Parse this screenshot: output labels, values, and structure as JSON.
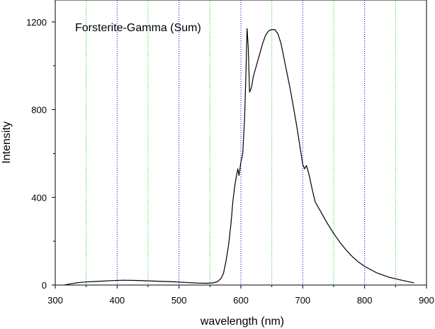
{
  "chart_data": {
    "type": "line",
    "title": "Forsterite-Gamma (Sum)",
    "xlabel": "wavelength (nm)",
    "ylabel": "Intensity",
    "xlim": [
      300,
      900
    ],
    "ylim": [
      0,
      1300
    ],
    "xticks": [
      300,
      400,
      500,
      600,
      700,
      800,
      900
    ],
    "yticks": [
      0,
      400,
      800,
      1200
    ],
    "grid": true,
    "grid_lines": [
      {
        "x": 350,
        "color": "#00cc00"
      },
      {
        "x": 400,
        "color": "#0000cc"
      },
      {
        "x": 450,
        "color": "#00cc00"
      },
      {
        "x": 500,
        "color": "#0000cc"
      },
      {
        "x": 550,
        "color": "#00cc00"
      },
      {
        "x": 600,
        "color": "#0000cc"
      },
      {
        "x": 650,
        "color": "#00cc00"
      },
      {
        "x": 700,
        "color": "#0000cc"
      },
      {
        "x": 750,
        "color": "#00cc00"
      },
      {
        "x": 800,
        "color": "#0000cc"
      },
      {
        "x": 850,
        "color": "#00cc00"
      }
    ],
    "series": [
      {
        "color": "#000000",
        "points": [
          [
            315,
            0
          ],
          [
            320,
            3
          ],
          [
            330,
            8
          ],
          [
            340,
            12
          ],
          [
            350,
            14
          ],
          [
            370,
            17
          ],
          [
            390,
            20
          ],
          [
            410,
            22
          ],
          [
            430,
            21
          ],
          [
            450,
            19
          ],
          [
            470,
            17
          ],
          [
            490,
            15
          ],
          [
            510,
            12
          ],
          [
            530,
            9
          ],
          [
            545,
            8
          ],
          [
            555,
            10
          ],
          [
            562,
            15
          ],
          [
            568,
            30
          ],
          [
            572,
            55
          ],
          [
            576,
            110
          ],
          [
            580,
            180
          ],
          [
            584,
            280
          ],
          [
            587,
            380
          ],
          [
            590,
            450
          ],
          [
            593,
            500
          ],
          [
            595,
            530
          ],
          [
            597,
            500
          ],
          [
            600,
            560
          ],
          [
            603,
            600
          ],
          [
            606,
            760
          ],
          [
            608,
            950
          ],
          [
            610,
            1170
          ],
          [
            612,
            1080
          ],
          [
            614,
            880
          ],
          [
            617,
            900
          ],
          [
            620,
            950
          ],
          [
            625,
            1000
          ],
          [
            630,
            1050
          ],
          [
            635,
            1100
          ],
          [
            640,
            1140
          ],
          [
            645,
            1160
          ],
          [
            650,
            1165
          ],
          [
            655,
            1165
          ],
          [
            660,
            1145
          ],
          [
            665,
            1100
          ],
          [
            670,
            1030
          ],
          [
            675,
            960
          ],
          [
            680,
            890
          ],
          [
            685,
            810
          ],
          [
            690,
            730
          ],
          [
            695,
            640
          ],
          [
            700,
            550
          ],
          [
            703,
            530
          ],
          [
            706,
            545
          ],
          [
            710,
            505
          ],
          [
            715,
            440
          ],
          [
            720,
            380
          ],
          [
            730,
            330
          ],
          [
            740,
            280
          ],
          [
            750,
            235
          ],
          [
            760,
            195
          ],
          [
            770,
            160
          ],
          [
            780,
            130
          ],
          [
            790,
            105
          ],
          [
            800,
            85
          ],
          [
            820,
            55
          ],
          [
            840,
            35
          ],
          [
            860,
            22
          ],
          [
            880,
            10
          ]
        ]
      }
    ]
  }
}
